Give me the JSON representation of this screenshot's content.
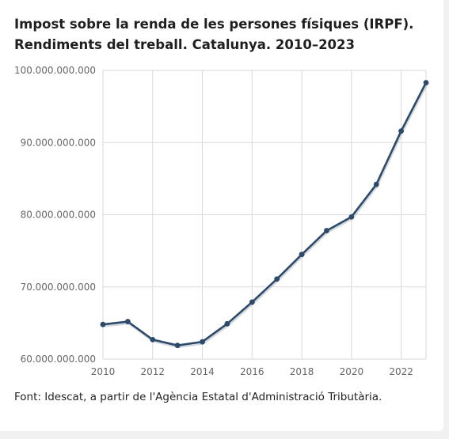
{
  "title": "Impost sobre la renda de les persones físiques (IRPF). Rendiments del treball. Catalunya. 2010–2023",
  "source": "Font: Idescat, a partir de l'Agència Estatal d'Administració Tributària.",
  "chart_data": {
    "type": "line",
    "title": "Impost sobre la renda de les persones físiques (IRPF). Rendiments del treball. Catalunya. 2010–2023",
    "xlabel": "",
    "ylabel": "",
    "x": [
      2010,
      2011,
      2012,
      2013,
      2014,
      2015,
      2016,
      2017,
      2018,
      2019,
      2020,
      2021,
      2022,
      2023
    ],
    "series": [
      {
        "values": [
          64800000000,
          65200000000,
          62700000000,
          61900000000,
          62400000000,
          64900000000,
          67900000000,
          71100000000,
          74500000000,
          77800000000,
          79700000000,
          84200000000,
          91600000000,
          98300000000
        ]
      }
    ],
    "xlim": [
      2010,
      2023
    ],
    "ylim": [
      60000000000,
      100000000000
    ],
    "x_ticks": [
      "2010",
      "2012",
      "2014",
      "2016",
      "2018",
      "2020",
      "2022"
    ],
    "y_ticks": [
      "60.000.000.000",
      "70.000.000.000",
      "80.000.000.000",
      "90.000.000.000",
      "100.000.000.000"
    ],
    "grid": true,
    "line_color": "#2e4a6b",
    "grid_color": "#d9d9d9"
  }
}
